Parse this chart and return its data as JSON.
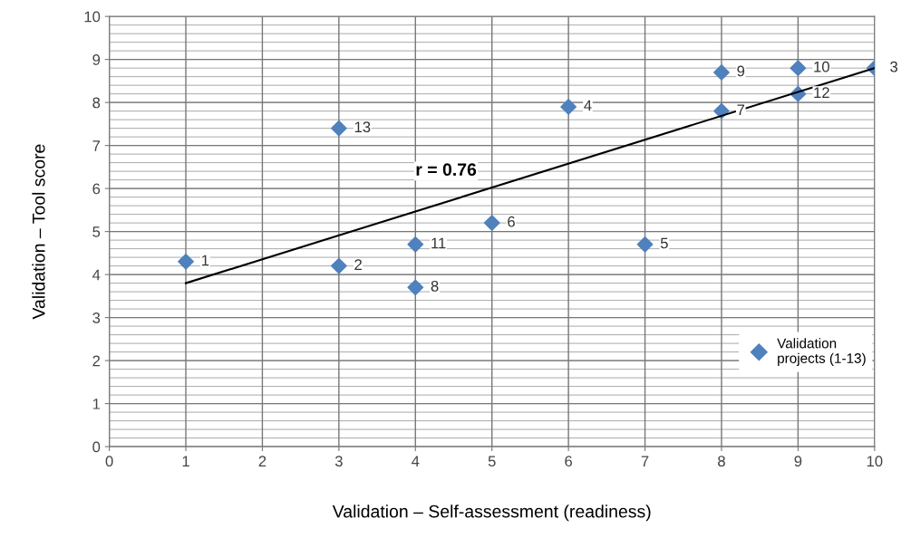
{
  "chart_data": {
    "type": "scatter",
    "xlabel": "Validation – Self-assessment (readiness)",
    "ylabel": "Validation – Tool score",
    "x": [
      1,
      3,
      10,
      6,
      7,
      5,
      8,
      4,
      8,
      9,
      4,
      9,
      3
    ],
    "series": [
      {
        "name": "Validation projects (1-13)",
        "color": "#4f81bd",
        "marker": "diamond",
        "values": [
          4.3,
          4.2,
          8.8,
          7.9,
          4.7,
          5.2,
          7.8,
          3.7,
          8.7,
          8.8,
          4.7,
          8.2,
          7.4
        ]
      },
      {
        "type": "line",
        "color": "#000000",
        "x": [
          1,
          10
        ],
        "values": [
          3.8,
          8.8
        ]
      }
    ],
    "annotations": [
      "r = 0.76",
      {
        "text": "1",
        "x": 1,
        "y": 4.3
      },
      {
        "text": "2",
        "x": 3,
        "y": 4.2
      },
      {
        "text": "3",
        "x": 10,
        "y": 8.8
      },
      {
        "text": "4",
        "x": 6,
        "y": 7.9
      },
      {
        "text": "5",
        "x": 7,
        "y": 4.7
      },
      {
        "text": "6",
        "x": 5,
        "y": 5.2
      },
      {
        "text": "7",
        "x": 8,
        "y": 7.8
      },
      {
        "text": "8",
        "x": 4,
        "y": 3.7
      },
      {
        "text": "9",
        "x": 8,
        "y": 8.7
      },
      {
        "text": "10",
        "x": 9,
        "y": 8.8
      },
      {
        "text": "11",
        "x": 4,
        "y": 4.7
      },
      {
        "text": "12",
        "x": 9,
        "y": 8.2
      },
      {
        "text": "13",
        "x": 3,
        "y": 7.4
      }
    ],
    "xlim": [
      0,
      10
    ],
    "ylim": [
      0,
      10
    ],
    "xticks": [
      0,
      1,
      2,
      3,
      4,
      5,
      6,
      7,
      8,
      9,
      10
    ],
    "yticks": [
      0,
      1,
      2,
      3,
      4,
      5,
      6,
      7,
      8,
      9,
      10
    ],
    "grid": true,
    "legend": "right"
  }
}
